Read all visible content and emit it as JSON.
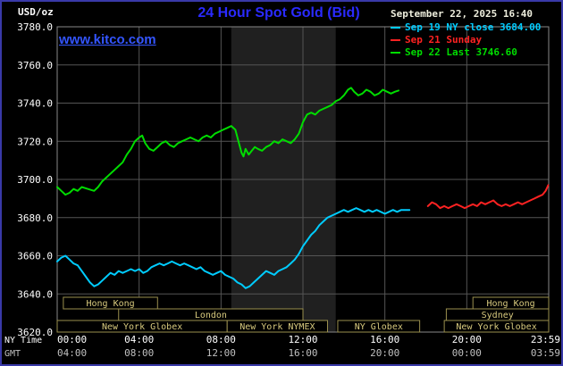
{
  "header": {
    "units": "USD/oz",
    "title": "24 Hour Spot Gold (Bid)",
    "datetime": "September 22, 2025 16:40",
    "watermark": "www.kitco.com"
  },
  "legend": [
    {
      "label": "Sep 19 NY close 3684.00",
      "color": "#00ccff"
    },
    {
      "label": "Sep 21 Sunday",
      "color": "#ff2222"
    },
    {
      "label": "Sep 22 Last 3746.60",
      "color": "#00dd00"
    }
  ],
  "colors": {
    "background": "#000000",
    "border": "#3939a8",
    "title": "#2a2aff",
    "watermark": "#3355ff",
    "datetime": "#eeeedd",
    "grid": "#555555",
    "frame": "#888888",
    "band": "#202020",
    "session_border": "#9a8f4e",
    "session_text": "#d8ca7e",
    "axis_ny": "#ffffff",
    "axis_gmt": "#c0c0c0"
  },
  "axes": {
    "y": {
      "tick_labels": [
        "3780.0",
        "3760.0",
        "3740.0",
        "3720.0",
        "3700.0",
        "3680.0",
        "3660.0",
        "3640.0",
        "3620.0"
      ]
    },
    "x_ny": {
      "label": "NY Time"
    },
    "x_gmt": {
      "label": "GMT"
    }
  },
  "chart_data": {
    "type": "line",
    "title": "24 Hour Spot Gold (Bid)",
    "ylabel": "USD/oz",
    "ylim": [
      3620,
      3780
    ],
    "y_tick_step": 20,
    "x_hours_range": [
      0,
      24
    ],
    "grid": true,
    "legend_position": "top-right",
    "x_ticks": {
      "hours": [
        0,
        4,
        8,
        12,
        16,
        20,
        23.983
      ],
      "ny_labels": [
        "00:00",
        "04:00",
        "08:00",
        "12:00",
        "16:00",
        "20:00",
        "23:59"
      ],
      "gmt_labels": [
        "04:00",
        "08:00",
        "12:00",
        "16:00",
        "20:00",
        "00:00",
        "03:59"
      ]
    },
    "nymex_band_hours": [
      8.5,
      13.6
    ],
    "sessions": [
      {
        "label": "Hong Kong",
        "row": 0,
        "start": 0.3,
        "end": 4.9
      },
      {
        "label": "Hong Kong",
        "row": 0,
        "start": 20.3,
        "end": 24
      },
      {
        "label": "London",
        "row": 1,
        "start": 3.0,
        "end": 12.0
      },
      {
        "label": "Sydney",
        "row": 1,
        "start": 19.0,
        "end": 24
      },
      {
        "label": "New York Globex",
        "row": 2,
        "start": 0.0,
        "end": 8.3
      },
      {
        "label": "New York NYMEX",
        "row": 2,
        "start": 8.3,
        "end": 13.2
      },
      {
        "label": "NY Globex",
        "row": 2,
        "start": 13.7,
        "end": 17.7
      },
      {
        "label": "New York Globex",
        "row": 2,
        "start": 18.9,
        "end": 24
      }
    ],
    "series": [
      {
        "id": "sep19",
        "name": "Sep 19 NY close",
        "close": 3684.0,
        "color": "#00ccff",
        "points": [
          [
            0,
            3657
          ],
          [
            0.2,
            3659
          ],
          [
            0.4,
            3660
          ],
          [
            0.6,
            3658
          ],
          [
            0.8,
            3656
          ],
          [
            1,
            3655
          ],
          [
            1.2,
            3652
          ],
          [
            1.4,
            3649
          ],
          [
            1.6,
            3646
          ],
          [
            1.8,
            3644
          ],
          [
            2,
            3645
          ],
          [
            2.2,
            3647
          ],
          [
            2.4,
            3649
          ],
          [
            2.6,
            3651
          ],
          [
            2.8,
            3650
          ],
          [
            3,
            3652
          ],
          [
            3.2,
            3651
          ],
          [
            3.4,
            3652
          ],
          [
            3.6,
            3653
          ],
          [
            3.8,
            3652
          ],
          [
            4,
            3653
          ],
          [
            4.2,
            3651
          ],
          [
            4.4,
            3652
          ],
          [
            4.6,
            3654
          ],
          [
            4.8,
            3655
          ],
          [
            5,
            3656
          ],
          [
            5.2,
            3655
          ],
          [
            5.4,
            3656
          ],
          [
            5.6,
            3657
          ],
          [
            5.8,
            3656
          ],
          [
            6,
            3655
          ],
          [
            6.2,
            3656
          ],
          [
            6.4,
            3655
          ],
          [
            6.6,
            3654
          ],
          [
            6.8,
            3653
          ],
          [
            7,
            3654
          ],
          [
            7.2,
            3652
          ],
          [
            7.4,
            3651
          ],
          [
            7.6,
            3650
          ],
          [
            7.8,
            3651
          ],
          [
            8,
            3652
          ],
          [
            8.2,
            3650
          ],
          [
            8.4,
            3649
          ],
          [
            8.6,
            3648
          ],
          [
            8.8,
            3646
          ],
          [
            9,
            3645
          ],
          [
            9.2,
            3643
          ],
          [
            9.4,
            3644
          ],
          [
            9.6,
            3646
          ],
          [
            9.8,
            3648
          ],
          [
            10,
            3650
          ],
          [
            10.2,
            3652
          ],
          [
            10.4,
            3651
          ],
          [
            10.6,
            3650
          ],
          [
            10.8,
            3652
          ],
          [
            11,
            3653
          ],
          [
            11.2,
            3654
          ],
          [
            11.4,
            3656
          ],
          [
            11.6,
            3658
          ],
          [
            11.8,
            3661
          ],
          [
            12,
            3665
          ],
          [
            12.2,
            3668
          ],
          [
            12.4,
            3671
          ],
          [
            12.6,
            3673
          ],
          [
            12.8,
            3676
          ],
          [
            13,
            3678
          ],
          [
            13.2,
            3680
          ],
          [
            13.4,
            3681
          ],
          [
            13.6,
            3682
          ],
          [
            13.8,
            3683
          ],
          [
            14,
            3684
          ],
          [
            14.2,
            3683
          ],
          [
            14.4,
            3684
          ],
          [
            14.6,
            3685
          ],
          [
            14.8,
            3684
          ],
          [
            15,
            3683
          ],
          [
            15.2,
            3684
          ],
          [
            15.4,
            3683
          ],
          [
            15.6,
            3684
          ],
          [
            15.8,
            3683
          ],
          [
            16,
            3682
          ],
          [
            16.2,
            3683
          ],
          [
            16.4,
            3684
          ],
          [
            16.6,
            3683
          ],
          [
            16.8,
            3684
          ],
          [
            17,
            3684
          ],
          [
            17.2,
            3684
          ]
        ]
      },
      {
        "id": "sep21",
        "name": "Sep 21 Sunday",
        "color": "#ff2222",
        "points": [
          [
            18.1,
            3686
          ],
          [
            18.3,
            3688
          ],
          [
            18.5,
            3687
          ],
          [
            18.7,
            3685
          ],
          [
            18.9,
            3686
          ],
          [
            19.1,
            3685
          ],
          [
            19.3,
            3686
          ],
          [
            19.5,
            3687
          ],
          [
            19.7,
            3686
          ],
          [
            19.9,
            3685
          ],
          [
            20.1,
            3686
          ],
          [
            20.3,
            3687
          ],
          [
            20.5,
            3686
          ],
          [
            20.7,
            3688
          ],
          [
            20.9,
            3687
          ],
          [
            21.1,
            3688
          ],
          [
            21.3,
            3689
          ],
          [
            21.5,
            3687
          ],
          [
            21.7,
            3686
          ],
          [
            21.9,
            3687
          ],
          [
            22.1,
            3686
          ],
          [
            22.3,
            3687
          ],
          [
            22.5,
            3688
          ],
          [
            22.7,
            3687
          ],
          [
            22.9,
            3688
          ],
          [
            23.1,
            3689
          ],
          [
            23.3,
            3690
          ],
          [
            23.5,
            3691
          ],
          [
            23.7,
            3692
          ],
          [
            23.85,
            3694
          ],
          [
            23.98,
            3697
          ]
        ]
      },
      {
        "id": "sep22",
        "name": "Sep 22",
        "last": 3746.6,
        "color": "#00dd00",
        "points": [
          [
            0,
            3696
          ],
          [
            0.2,
            3694
          ],
          [
            0.4,
            3692
          ],
          [
            0.6,
            3693
          ],
          [
            0.8,
            3695
          ],
          [
            1,
            3694
          ],
          [
            1.2,
            3696
          ],
          [
            1.5,
            3695
          ],
          [
            1.8,
            3694
          ],
          [
            2,
            3696
          ],
          [
            2.2,
            3699
          ],
          [
            2.5,
            3702
          ],
          [
            2.8,
            3705
          ],
          [
            3,
            3707
          ],
          [
            3.2,
            3709
          ],
          [
            3.4,
            3713
          ],
          [
            3.6,
            3716
          ],
          [
            3.8,
            3720
          ],
          [
            4,
            3722
          ],
          [
            4.15,
            3723
          ],
          [
            4.3,
            3719
          ],
          [
            4.5,
            3716
          ],
          [
            4.7,
            3715
          ],
          [
            4.9,
            3717
          ],
          [
            5.1,
            3719
          ],
          [
            5.3,
            3720
          ],
          [
            5.5,
            3718
          ],
          [
            5.7,
            3717
          ],
          [
            5.9,
            3719
          ],
          [
            6.1,
            3720
          ],
          [
            6.3,
            3721
          ],
          [
            6.5,
            3722
          ],
          [
            6.7,
            3721
          ],
          [
            6.9,
            3720
          ],
          [
            7.1,
            3722
          ],
          [
            7.3,
            3723
          ],
          [
            7.5,
            3722
          ],
          [
            7.7,
            3724
          ],
          [
            7.9,
            3725
          ],
          [
            8.1,
            3726
          ],
          [
            8.3,
            3727
          ],
          [
            8.5,
            3728
          ],
          [
            8.7,
            3726
          ],
          [
            8.85,
            3720
          ],
          [
            9,
            3714
          ],
          [
            9.1,
            3712
          ],
          [
            9.2,
            3716
          ],
          [
            9.35,
            3713
          ],
          [
            9.5,
            3715
          ],
          [
            9.65,
            3717
          ],
          [
            9.8,
            3716
          ],
          [
            10,
            3715
          ],
          [
            10.2,
            3717
          ],
          [
            10.4,
            3718
          ],
          [
            10.6,
            3720
          ],
          [
            10.8,
            3719
          ],
          [
            11,
            3721
          ],
          [
            11.2,
            3720
          ],
          [
            11.4,
            3719
          ],
          [
            11.6,
            3721
          ],
          [
            11.8,
            3724
          ],
          [
            12,
            3730
          ],
          [
            12.2,
            3734
          ],
          [
            12.4,
            3735
          ],
          [
            12.6,
            3734
          ],
          [
            12.8,
            3736
          ],
          [
            13,
            3737
          ],
          [
            13.2,
            3738
          ],
          [
            13.4,
            3739
          ],
          [
            13.6,
            3741
          ],
          [
            13.8,
            3742
          ],
          [
            14,
            3744
          ],
          [
            14.2,
            3747
          ],
          [
            14.35,
            3748
          ],
          [
            14.5,
            3746
          ],
          [
            14.7,
            3744
          ],
          [
            14.9,
            3745
          ],
          [
            15.1,
            3747
          ],
          [
            15.3,
            3746
          ],
          [
            15.5,
            3744
          ],
          [
            15.7,
            3745
          ],
          [
            15.9,
            3747
          ],
          [
            16.1,
            3746
          ],
          [
            16.3,
            3745
          ],
          [
            16.5,
            3746
          ],
          [
            16.67,
            3746.6
          ]
        ]
      }
    ]
  }
}
